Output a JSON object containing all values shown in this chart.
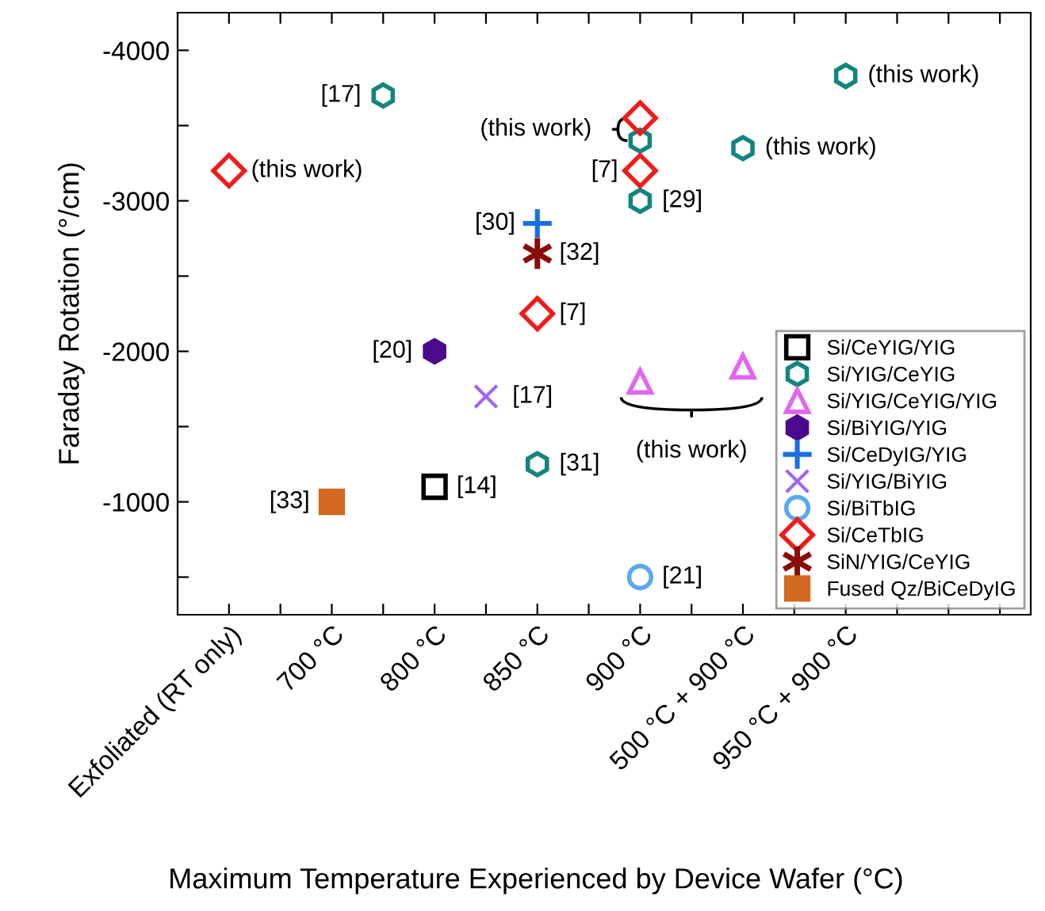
{
  "chart_data": {
    "type": "scatter",
    "xlabel": "Maximum Temperature Experienced by Device Wafer (°C)",
    "ylabel": "Faraday Rotation (°/cm)",
    "categories": [
      "Exfoliated (RT only)",
      null,
      "700 °C",
      null,
      "800 °C",
      null,
      "850 °C",
      null,
      "900 °C",
      null,
      "500 °C + 900 °C",
      null,
      "950 °C + 900 °C",
      null,
      null,
      null
    ],
    "ylim": [
      -250,
      -4250
    ],
    "yticks": [
      -4000,
      {
        "value": -3500,
        "label": null
      },
      -3000,
      {
        "value": -2500,
        "label": null
      },
      -2000,
      {
        "value": -1500,
        "label": null
      },
      -1000,
      {
        "value": -500,
        "label": null
      }
    ],
    "grid": false,
    "legend": "bottom right",
    "series": [
      {
        "name": "Si/CeYIG/YIG",
        "color": "#000000",
        "marker": "square",
        "values": [
          null,
          null,
          null,
          null,
          -1100,
          null,
          null,
          null,
          null,
          null,
          null,
          null,
          null,
          null,
          null,
          null
        ]
      },
      {
        "name": "Si/YIG/CeYIG",
        "color": "#13857f",
        "values": [
          null,
          null,
          null,
          -3700,
          null,
          null,
          -1250,
          null,
          -3400,
          null,
          -3350,
          null,
          -3830,
          null,
          null,
          null
        ]
      },
      {
        "name": "Si/YIG/CeYIG/YIG",
        "color": "#e066f0",
        "marker": "triangle",
        "values": [
          null,
          null,
          null,
          null,
          null,
          null,
          null,
          null,
          -1800,
          null,
          -1900,
          null,
          null,
          null,
          null,
          null
        ]
      },
      {
        "name": "Si/BiYIG/YIG",
        "color": "#4b0a8c",
        "values": [
          null,
          null,
          null,
          null,
          -2000,
          null,
          null,
          null,
          null,
          null,
          null,
          null,
          null,
          null,
          null,
          null
        ]
      },
      {
        "name": "Si/CeDyIG/YIG",
        "color": "#1a6fe0",
        "marker": "cross",
        "values": [
          null,
          null,
          null,
          null,
          null,
          null,
          -2850,
          null,
          null,
          null,
          null,
          null,
          null,
          null,
          null,
          null
        ]
      },
      {
        "name": "Si/YIG/BiYIG",
        "color": "#a066f0",
        "marker": "star",
        "values": [
          null,
          null,
          null,
          null,
          null,
          -1700,
          null,
          null,
          null,
          null,
          null,
          null,
          null,
          null,
          null,
          null
        ]
      },
      {
        "name": "Si/BiTbIG",
        "color": "#5aa8f0",
        "marker": "circle",
        "values": [
          null,
          null,
          null,
          null,
          null,
          null,
          null,
          null,
          -500,
          null,
          null,
          null,
          null,
          null,
          null,
          null
        ]
      },
      {
        "name": "Si/CeTbIG",
        "color": "#f01c1c",
        "marker": "diamond",
        "values": [
          -3200,
          null,
          null,
          null,
          null,
          null,
          -2250,
          null,
          -3550,
          null,
          null,
          null,
          null,
          null,
          null,
          null
        ]
      },
      {
        "name": "SiN/YIG/CeYIG",
        "color": "#8b0a0a",
        "values": [
          null,
          null,
          null,
          null,
          null,
          null,
          -2650,
          null,
          null,
          null,
          null,
          null,
          null,
          null,
          null,
          null
        ]
      },
      {
        "name": "Fused Qz/BiCeDyIG",
        "color": "#d2691e",
        "marker": "square",
        "values": [
          null,
          null,
          -1000,
          null,
          null,
          null,
          null,
          null,
          null,
          null,
          null,
          null,
          null,
          null,
          null,
          null
        ]
      },
      {
        "color": "#13857f",
        "values": [
          null,
          null,
          null,
          null,
          null,
          null,
          null,
          null,
          -3000,
          null,
          null,
          null,
          null,
          null,
          null,
          null
        ]
      },
      {
        "color": "#f01c1c",
        "marker": "diamond",
        "values": [
          null,
          null,
          null,
          null,
          null,
          null,
          null,
          null,
          -3200,
          null,
          null,
          null,
          null,
          null,
          null,
          null
        ]
      }
    ],
    "annotations": [
      "(this work)",
      "[17]",
      "(this work)",
      "[7]",
      "[29]",
      "(this work)",
      "(this work)",
      "[30]",
      "[32]",
      "[7]",
      "[20]",
      "[17]",
      "(this work)",
      "[31]",
      "[14]",
      "[33]",
      "[21]"
    ]
  }
}
